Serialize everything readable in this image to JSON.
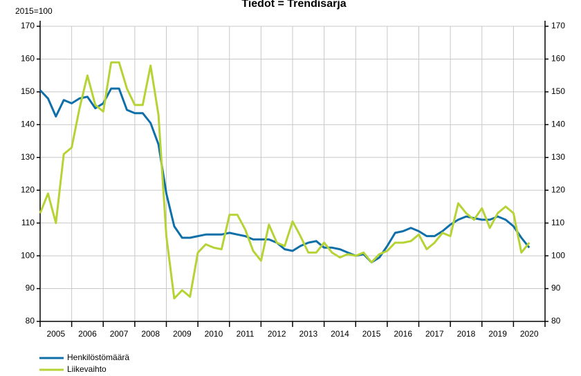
{
  "chart_data": {
    "type": "line",
    "title": "Tiedot = Trendisarja",
    "y_label": "2015=100",
    "categories": [
      "2005",
      "2006",
      "2007",
      "2008",
      "2009",
      "2010",
      "2011",
      "2012",
      "2013",
      "2014",
      "2015",
      "2016",
      "2017",
      "2018",
      "2019",
      "2020"
    ],
    "x": [
      2005,
      2005.25,
      2005.5,
      2005.75,
      2006,
      2006.25,
      2006.5,
      2006.75,
      2007,
      2007.25,
      2007.5,
      2007.75,
      2008,
      2008.25,
      2008.5,
      2008.75,
      2009,
      2009.25,
      2009.5,
      2009.75,
      2010,
      2010.25,
      2010.5,
      2010.75,
      2011,
      2011.25,
      2011.5,
      2011.75,
      2012,
      2012.25,
      2012.5,
      2012.75,
      2013,
      2013.25,
      2013.5,
      2013.75,
      2014,
      2014.25,
      2014.5,
      2014.75,
      2015,
      2015.25,
      2015.5,
      2015.75,
      2016,
      2016.25,
      2016.5,
      2016.75,
      2017,
      2017.25,
      2017.5,
      2017.75,
      2018,
      2018.25,
      2018.5,
      2018.75,
      2019,
      2019.25,
      2019.5,
      2019.75,
      2020,
      2020.25,
      2020.5
    ],
    "xlim": [
      2005,
      2021
    ],
    "xticks": [
      2005,
      2006,
      2007,
      2008,
      2009,
      2010,
      2011,
      2012,
      2013,
      2014,
      2015,
      2016,
      2017,
      2018,
      2019,
      2020,
      2021
    ],
    "ylim": [
      80,
      170
    ],
    "yticks": [
      80,
      90,
      100,
      110,
      120,
      130,
      140,
      150,
      160,
      170
    ],
    "grid": true,
    "legend": "bottom-left",
    "series": [
      {
        "name": "Henkilöstömäärä",
        "color": "#0f6fa8",
        "values": [
          150.5,
          148,
          142.5,
          147.5,
          146.5,
          148,
          148.5,
          145,
          146.5,
          151,
          151,
          144.5,
          143.5,
          143.5,
          140.5,
          134,
          119,
          109,
          105.5,
          105.5,
          106,
          106.5,
          106.5,
          106.5,
          107,
          106.5,
          106,
          105,
          105,
          105,
          104,
          102,
          101.5,
          103,
          104,
          104.5,
          102.5,
          102.5,
          102,
          101,
          100,
          100.5,
          98,
          99.5,
          103,
          107,
          107.5,
          108.5,
          107.5,
          106,
          106,
          107.5,
          109.5,
          111,
          112,
          111.5,
          111,
          111,
          112,
          111,
          109,
          105.5,
          102.5
        ]
      },
      {
        "name": "Liikevaihto",
        "color": "#b5d334",
        "values": [
          113,
          119,
          110,
          131,
          133,
          145,
          155,
          146,
          144,
          159,
          159,
          151,
          146,
          146,
          158,
          143,
          106,
          87,
          89.5,
          87.5,
          101,
          103.5,
          102.5,
          102,
          112.5,
          112.5,
          108,
          101.5,
          98.5,
          109.5,
          104,
          103,
          110.5,
          106,
          101,
          101,
          104,
          101,
          99.5,
          100.5,
          100,
          101,
          98,
          100.5,
          101.5,
          104,
          104,
          104.5,
          106.5,
          102,
          104,
          107,
          106,
          116,
          113,
          111,
          114.5,
          108.5,
          113,
          115,
          113,
          101,
          104
        ]
      }
    ]
  }
}
